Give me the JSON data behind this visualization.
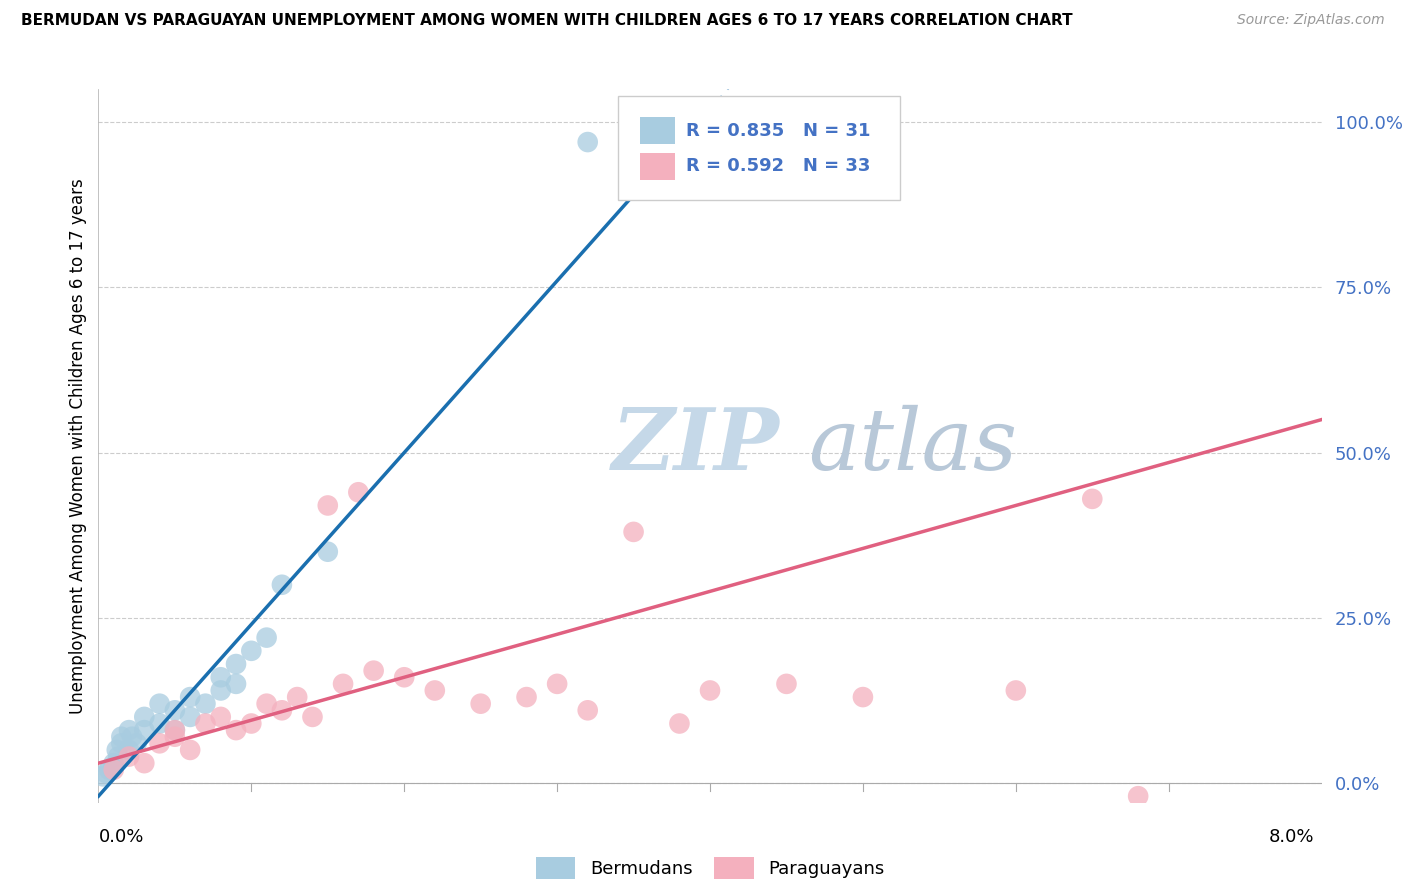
{
  "title": "BERMUDAN VS PARAGUAYAN UNEMPLOYMENT AMONG WOMEN WITH CHILDREN AGES 6 TO 17 YEARS CORRELATION CHART",
  "source": "Source: ZipAtlas.com",
  "ylabel_label": "Unemployment Among Women with Children Ages 6 to 17 years",
  "legend_label1": "Bermudans",
  "legend_label2": "Paraguayans",
  "R_bermuda": 0.835,
  "N_bermuda": 31,
  "R_paraguay": 0.592,
  "N_paraguay": 33,
  "color_bermuda": "#a8cce0",
  "color_paraguay": "#f4b0be",
  "color_bermuda_line": "#1a6faf",
  "color_paraguay_line": "#e06080",
  "color_text_blue": "#4472c4",
  "watermark_zip_color": "#c5d8e8",
  "watermark_atlas_color": "#c5d8e8",
  "background_color": "#ffffff",
  "grid_color": "#cccccc",
  "xmin": 0.0,
  "xmax": 0.08,
  "ymin": -0.03,
  "ymax": 1.05,
  "yticks": [
    0.0,
    0.25,
    0.5,
    0.75,
    1.0
  ],
  "ytick_labels": [
    "0.0%",
    "25.0%",
    "50.0%",
    "75.0%",
    "100.0%"
  ],
  "blue_line_slope": 26.0,
  "blue_line_intercept": -0.02,
  "pink_line_slope": 6.5,
  "pink_line_intercept": 0.03,
  "bermuda_x": [
    0.0003,
    0.0005,
    0.0007,
    0.001,
    0.001,
    0.0012,
    0.0013,
    0.0015,
    0.0015,
    0.002,
    0.002,
    0.0022,
    0.0025,
    0.003,
    0.003,
    0.004,
    0.004,
    0.005,
    0.005,
    0.006,
    0.006,
    0.007,
    0.008,
    0.008,
    0.009,
    0.009,
    0.01,
    0.011,
    0.012,
    0.015,
    0.032
  ],
  "bermuda_y": [
    0.01,
    0.015,
    0.02,
    0.025,
    0.03,
    0.05,
    0.04,
    0.06,
    0.07,
    0.05,
    0.08,
    0.07,
    0.06,
    0.08,
    0.1,
    0.09,
    0.12,
    0.08,
    0.11,
    0.1,
    0.13,
    0.12,
    0.14,
    0.16,
    0.15,
    0.18,
    0.2,
    0.22,
    0.3,
    0.35,
    0.97
  ],
  "paraguay_x": [
    0.001,
    0.002,
    0.003,
    0.004,
    0.005,
    0.005,
    0.006,
    0.007,
    0.008,
    0.009,
    0.01,
    0.011,
    0.012,
    0.013,
    0.014,
    0.015,
    0.016,
    0.017,
    0.018,
    0.02,
    0.022,
    0.025,
    0.028,
    0.03,
    0.032,
    0.035,
    0.038,
    0.04,
    0.045,
    0.05,
    0.06,
    0.065,
    0.068
  ],
  "paraguay_y": [
    0.02,
    0.04,
    0.03,
    0.06,
    0.08,
    0.07,
    0.05,
    0.09,
    0.1,
    0.08,
    0.09,
    0.12,
    0.11,
    0.13,
    0.1,
    0.42,
    0.15,
    0.44,
    0.17,
    0.16,
    0.14,
    0.12,
    0.13,
    0.15,
    0.11,
    0.38,
    0.09,
    0.14,
    0.15,
    0.13,
    0.14,
    0.43,
    -0.02
  ]
}
